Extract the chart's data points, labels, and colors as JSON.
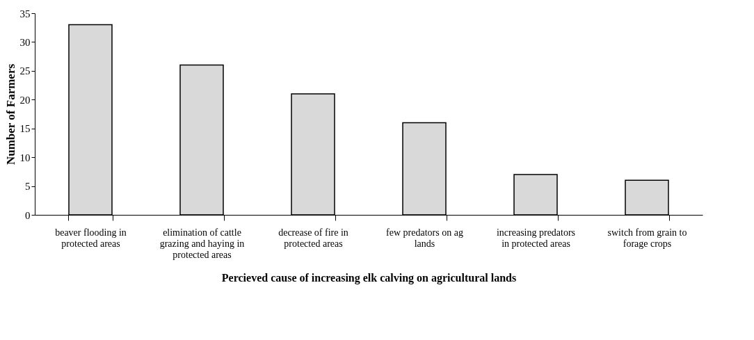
{
  "chart_data": {
    "type": "bar",
    "xlabel": "Percieved cause of increasing elk calving on agricultural lands",
    "ylabel": "Number of Farmers",
    "categories": [
      "beaver flooding in protected areas",
      "elimination of cattle grazing and haying in protected areas",
      "decrease of fire in protected areas",
      "few predators on ag lands",
      "increasing predators in protected areas",
      "switch from grain to forage crops"
    ],
    "values": [
      33,
      26,
      21,
      16,
      7,
      6
    ],
    "color": "#d9d9d9",
    "ylim": [
      0,
      35
    ],
    "yticks": [
      0,
      5,
      10,
      15,
      20,
      25,
      30,
      35
    ],
    "grid": false
  }
}
